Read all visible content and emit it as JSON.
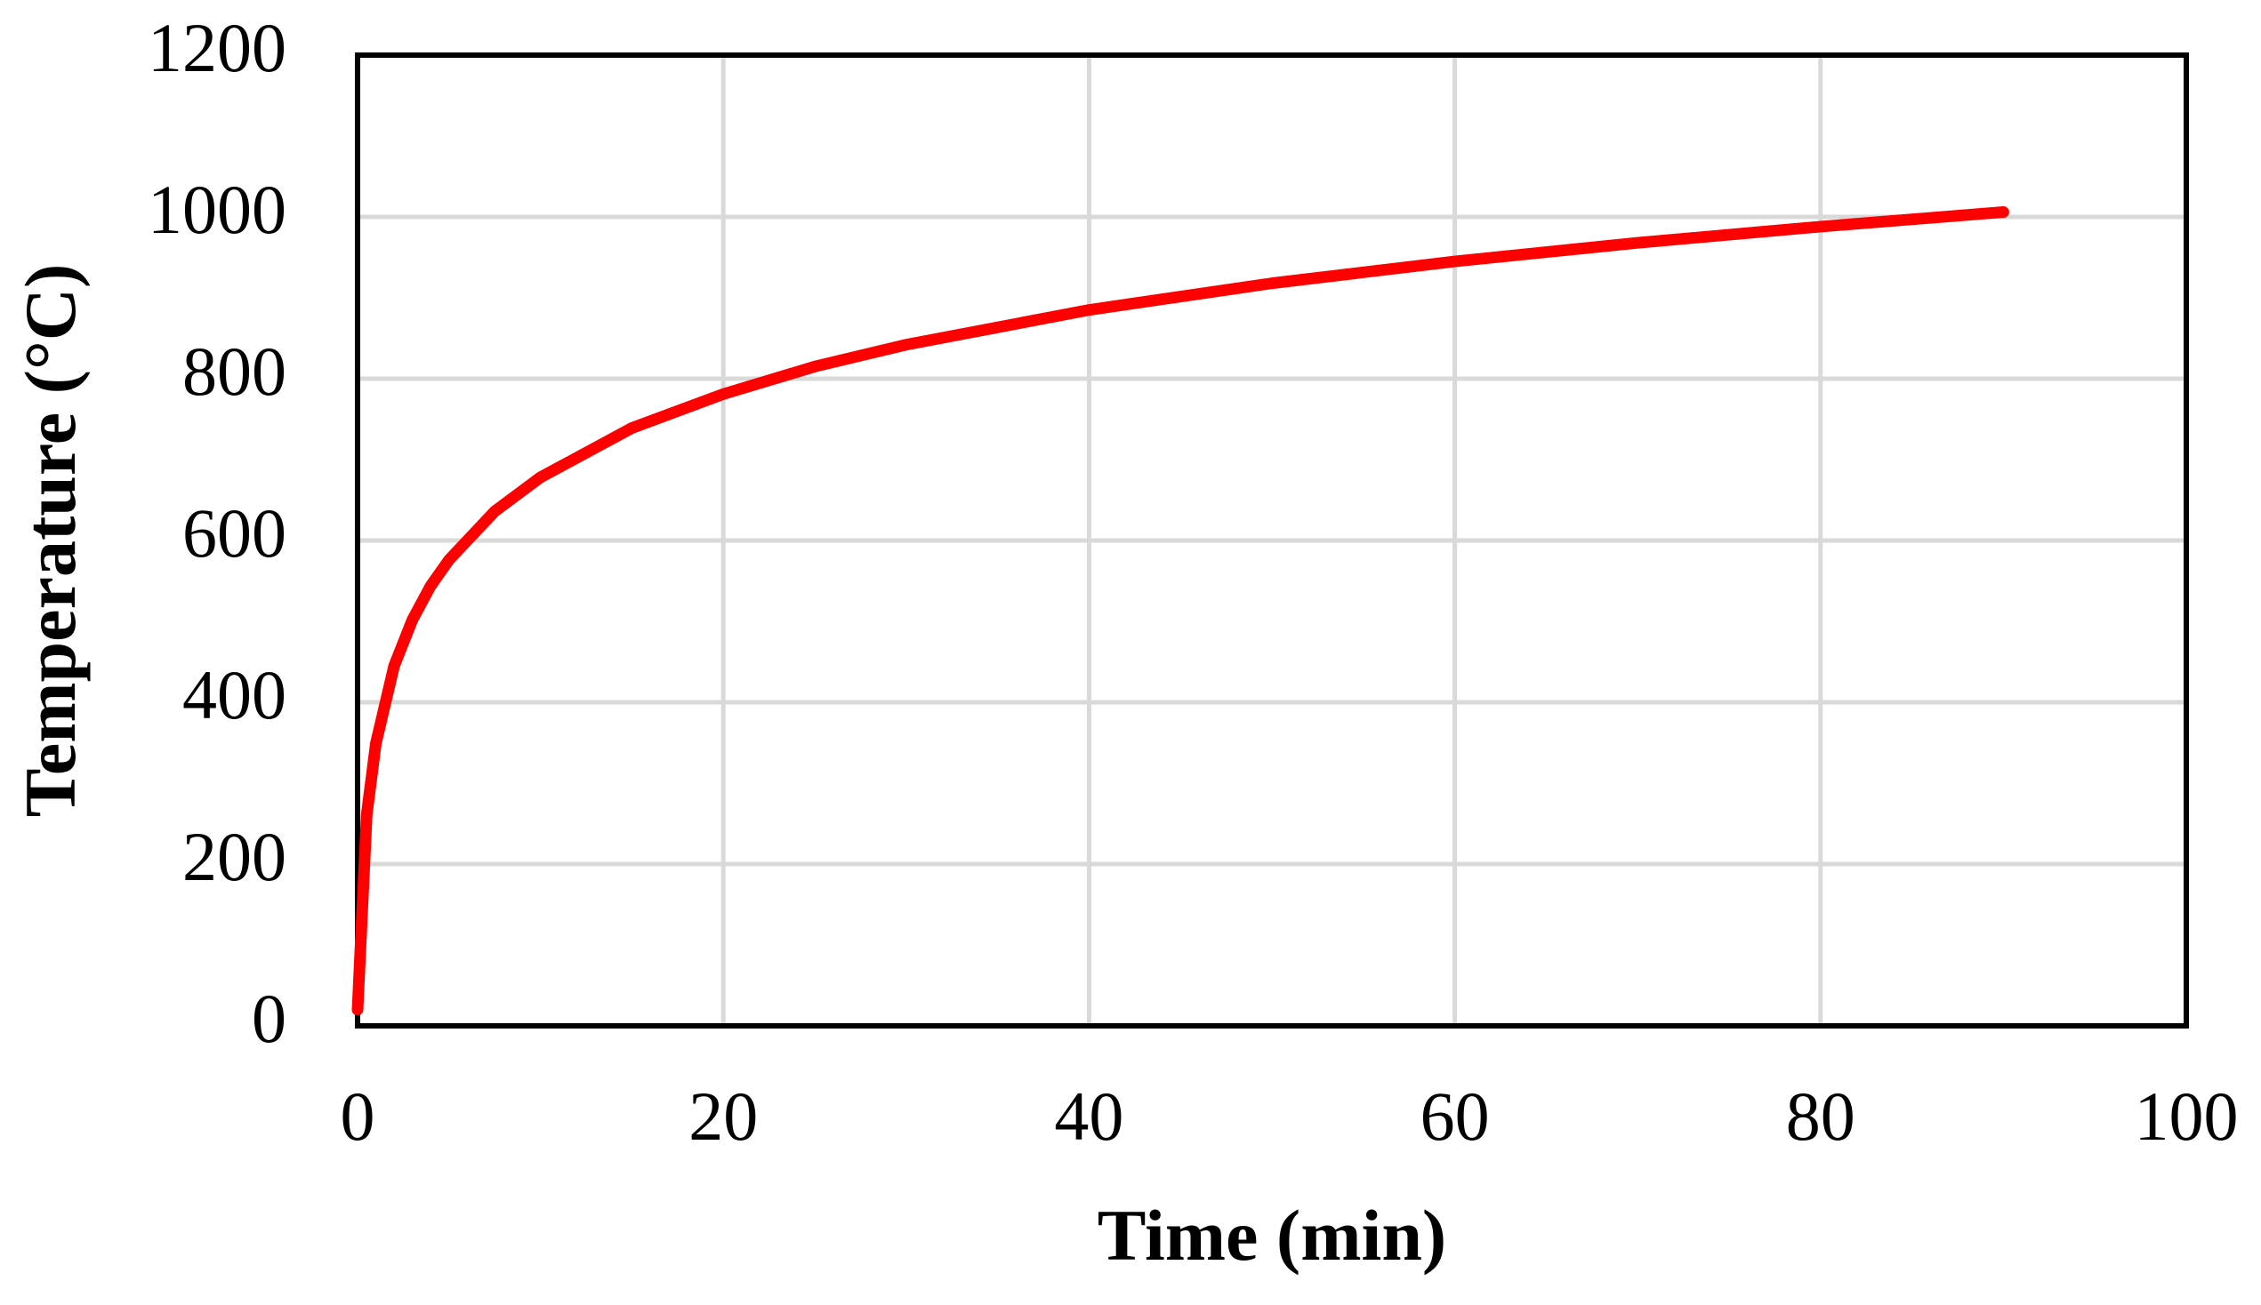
{
  "chart_data": {
    "type": "line",
    "x_label": "Time (min)",
    "y_label": "Temperature (°C)",
    "x": [
      0,
      0.5,
      1,
      2,
      3,
      4,
      5,
      7.5,
      10,
      15,
      20,
      25,
      30,
      40,
      50,
      60,
      70,
      80,
      90
    ],
    "values": [
      20,
      261,
      349,
      445,
      502,
      544,
      576,
      636,
      678,
      739,
      781,
      815,
      842,
      885,
      918,
      945,
      968,
      988,
      1006
    ],
    "color": "#ff0000",
    "xlim": [
      0,
      100
    ],
    "xticks": [
      0,
      20,
      40,
      60,
      80,
      100
    ],
    "ylim": [
      0,
      1200
    ],
    "yticks": [
      0,
      200,
      400,
      600,
      800,
      1000,
      1200
    ],
    "grid": true
  }
}
